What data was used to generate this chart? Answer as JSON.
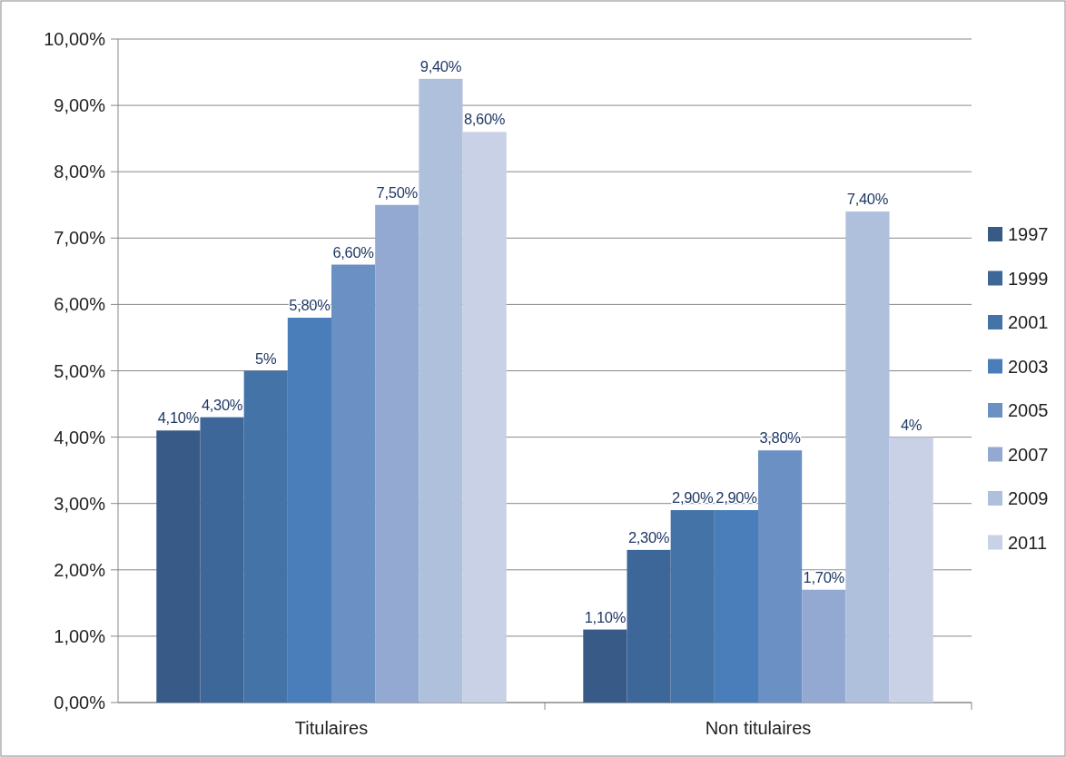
{
  "chart_data": {
    "type": "bar",
    "categories": [
      "Titulaires",
      "Non titulaires"
    ],
    "series": [
      {
        "name": "1997",
        "color": "#375a87",
        "values": [
          4.1,
          1.1
        ],
        "value_labels": [
          "4,10%",
          "1,10%"
        ]
      },
      {
        "name": "1999",
        "color": "#3d6699",
        "values": [
          4.3,
          2.3
        ],
        "value_labels": [
          "4,30%",
          "2,30%"
        ]
      },
      {
        "name": "2001",
        "color": "#4473a7",
        "values": [
          5,
          2.9
        ],
        "value_labels": [
          "5%",
          "2,90%"
        ]
      },
      {
        "name": "2003",
        "color": "#4a7ebb",
        "values": [
          5.8,
          2.9
        ],
        "value_labels": [
          "5,80%",
          "2,90%"
        ]
      },
      {
        "name": "2005",
        "color": "#6a90c4",
        "values": [
          6.6,
          3.8
        ],
        "value_labels": [
          "6,60%",
          "3,80%"
        ]
      },
      {
        "name": "2007",
        "color": "#93a9d1",
        "values": [
          7.5,
          1.7
        ],
        "value_labels": [
          "7,50%",
          "1,70%"
        ]
      },
      {
        "name": "2009",
        "color": "#afc0dc",
        "values": [
          9.4,
          7.4
        ],
        "value_labels": [
          "9,40%",
          "7,40%"
        ]
      },
      {
        "name": "2011",
        "color": "#c8d1e5",
        "values": [
          8.6,
          4
        ],
        "value_labels": [
          "8,60%",
          "4%"
        ]
      }
    ],
    "ylim": [
      0,
      10
    ],
    "yticks": [
      {
        "value": 0,
        "label": "0,00%"
      },
      {
        "value": 1,
        "label": "1,00%"
      },
      {
        "value": 2,
        "label": "2,00%"
      },
      {
        "value": 3,
        "label": "3,00%"
      },
      {
        "value": 4,
        "label": "4,00%"
      },
      {
        "value": 5,
        "label": "5,00%"
      },
      {
        "value": 6,
        "label": "6,00%"
      },
      {
        "value": 7,
        "label": "7,00%"
      },
      {
        "value": 8,
        "label": "8,00%"
      },
      {
        "value": 9,
        "label": "9,00%"
      },
      {
        "value": 10,
        "label": "10,00%"
      }
    ],
    "grid": "y",
    "legend": "right"
  }
}
